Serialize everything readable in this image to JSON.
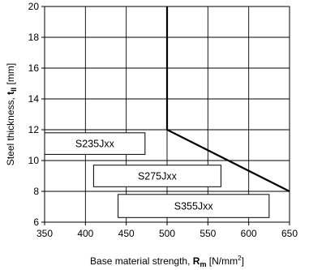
{
  "chart_data": {
    "type": "line",
    "xlabel": {
      "prefix": "Base material strength, ",
      "symbol": "R",
      "subscript": "m",
      "unit_pre": " [N/mm",
      "unit_sup": "2",
      "unit_post": "]"
    },
    "ylabel": {
      "prefix": "Steel thickness, ",
      "symbol": "t",
      "subscript": "II",
      "unit": " [mm]"
    },
    "xlim": [
      350,
      650
    ],
    "ylim": [
      6,
      20
    ],
    "xticks": [
      350,
      400,
      450,
      500,
      550,
      600,
      650
    ],
    "yticks": [
      6,
      8,
      10,
      12,
      14,
      16,
      18,
      20
    ],
    "grid": true,
    "series": [
      {
        "x": [
          500,
          500,
          650
        ],
        "y": [
          20,
          12,
          8
        ]
      }
    ],
    "annotations": [
      {
        "text": "S235Jxx",
        "x_range": [
          350,
          473
        ],
        "y_range": [
          10.4,
          11.8
        ]
      },
      {
        "text": "S275Jxx",
        "x_range": [
          410,
          566
        ],
        "y_range": [
          8.3,
          9.7
        ]
      },
      {
        "text": "S355Jxx",
        "x_range": [
          440,
          625
        ],
        "y_range": [
          6.3,
          7.8
        ]
      }
    ]
  }
}
